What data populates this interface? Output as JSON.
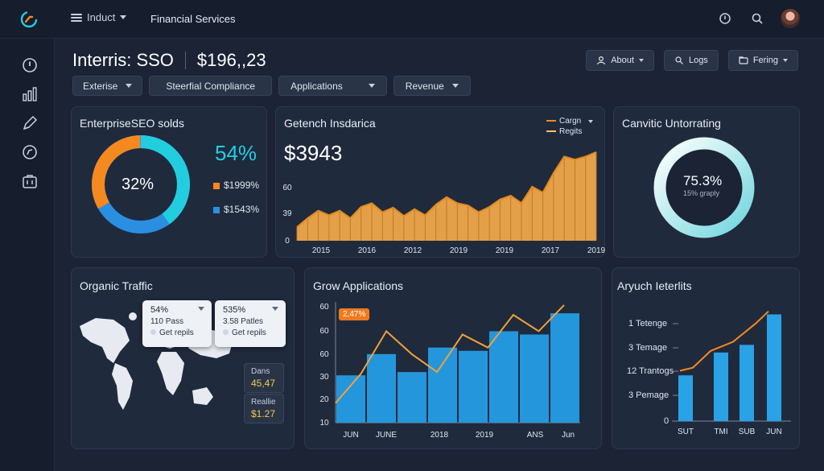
{
  "topbar": {
    "menu_label": "Induct",
    "breadcrumb": "Financial Services"
  },
  "header": {
    "title": "Interris: SSO",
    "value": "$196,,23"
  },
  "filters": [
    "Exterise",
    "Steerfial Compliance",
    "Applications",
    "Revenue"
  ],
  "actions": {
    "about": "About",
    "logs": "Logs",
    "filter": "Fering"
  },
  "cards": {
    "seo": {
      "title": "EnterpriseSEO solds",
      "center_value": "32%",
      "big_value": "54%",
      "legend": [
        "$1999%",
        "$1543%"
      ],
      "colors": {
        "orange": "#f5891f",
        "cyan": "#22cde0",
        "blue": "#2a8fe0"
      }
    },
    "growth": {
      "title": "Getench Insdarica",
      "big_value": "$3943",
      "legend": [
        "Cargn",
        "Regits"
      ]
    },
    "monitor": {
      "title": "Canvitic Untorrating",
      "value": "75.3%",
      "sub": "15% graply"
    },
    "traffic": {
      "title": "Organic Traffic",
      "popups": [
        {
          "value": "54%",
          "line1": "110 Pass",
          "line2": "Get repils"
        },
        {
          "value": "535%",
          "line1": "3.58 Patles",
          "line2": "Get repils"
        }
      ],
      "stats": [
        {
          "label": "Dans",
          "value": "45,47"
        },
        {
          "label": "Reallie",
          "value": "$1.27"
        }
      ]
    },
    "apps": {
      "title": "Grow Applications",
      "badge": "2,47%"
    },
    "interests": {
      "title": "Aryuch Ieterlits",
      "rows": [
        "1 Tetenge",
        "3 Temage",
        "12 Trantogs",
        "3 Pemage",
        "0"
      ]
    }
  },
  "chart_data": [
    {
      "type": "area",
      "title": "Getench Insdarica",
      "x_tick_labels": [
        "2015",
        "2016",
        "2012",
        "2019",
        "2019",
        "2017",
        "2019"
      ],
      "y_tick_labels": [
        "60",
        "39",
        "0"
      ],
      "values": [
        18,
        30,
        40,
        34,
        40,
        30,
        45,
        50,
        38,
        44,
        33,
        42,
        34,
        48,
        58,
        50,
        47,
        38,
        45,
        55,
        60,
        50,
        72,
        64,
        90,
        112,
        108,
        112,
        118
      ],
      "series_legend": [
        "Cargn",
        "Regits"
      ],
      "color": "#f5a94a"
    },
    {
      "type": "bar",
      "title": "Grow Applications",
      "x_tick_labels": [
        "JUN",
        "JUNE",
        "2018",
        "2019",
        "ANS",
        "Jun"
      ],
      "y_tick_labels": [
        "60",
        "60",
        "60",
        "30",
        "20",
        "10"
      ],
      "values": [
        29,
        42,
        31,
        46,
        44,
        56,
        54,
        67
      ],
      "line": [
        12,
        30,
        56,
        42,
        31,
        54,
        46,
        66,
        56,
        72
      ],
      "color": "#2496dc",
      "line_color": "#f0a13a"
    },
    {
      "type": "bar",
      "title": "Aryuch Ieterlits",
      "x_tick_labels": [
        "SUT",
        "TMI",
        "SUB",
        "JUN"
      ],
      "values": [
        30,
        45,
        50,
        70
      ],
      "line": [
        33,
        35,
        46,
        52,
        64,
        72
      ],
      "color": "#2aa2e6",
      "line_color": "#f5891f"
    }
  ]
}
